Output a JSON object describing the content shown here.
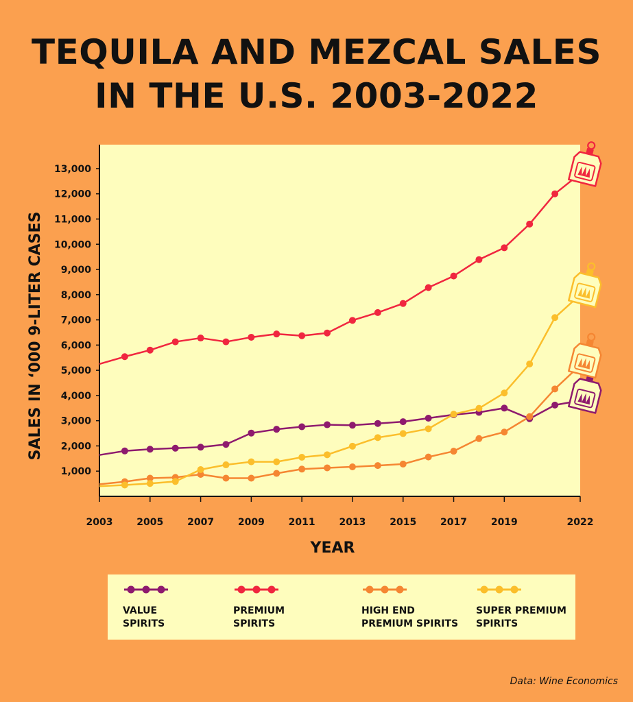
{
  "title_line1": "TEQUILA AND MEZCAL SALES",
  "title_line2": "IN THE U.S. 2003-2022",
  "source": "Data: Wine Economics",
  "colors": {
    "background": "#fba04f",
    "plot_area": "#fefdbd",
    "value": "#8e1a6e",
    "premium": "#f0263f",
    "high_end": "#f58632",
    "super_premium": "#fbbe2b"
  },
  "chart_data": {
    "type": "line",
    "xlabel": "YEAR",
    "ylabel": "SALES IN ‘000 9-LITER CASES",
    "x": [
      2003,
      2004,
      2005,
      2006,
      2007,
      2008,
      2009,
      2010,
      2011,
      2012,
      2013,
      2014,
      2015,
      2016,
      2017,
      2018,
      2019,
      2020,
      2021,
      2022
    ],
    "xticks": [
      "2003",
      "2005",
      "2007",
      "2009",
      "2011",
      "2013",
      "2015",
      "2017",
      "2019",
      "2022"
    ],
    "xtick_values": [
      2003,
      2005,
      2007,
      2009,
      2011,
      2013,
      2015,
      2017,
      2019,
      2022
    ],
    "yticks": [
      "1,000",
      "2,000",
      "3,000",
      "4,000",
      "5,000",
      "6,000",
      "7,000",
      "8,000",
      "9,000",
      "10,000",
      "11,000",
      "12,000",
      "13,000"
    ],
    "ytick_values": [
      1000,
      2000,
      3000,
      4000,
      5000,
      6000,
      7000,
      8000,
      9000,
      10000,
      11000,
      12000,
      13000
    ],
    "ylim": [
      0,
      13950
    ],
    "grid": false,
    "legend_position": "bottom",
    "series": [
      {
        "key": "value",
        "legend": "VALUE\nSPIRITS",
        "color": "#8e1a6e",
        "values": [
          1640,
          1800,
          1870,
          1910,
          1950,
          2060,
          2510,
          2660,
          2760,
          2840,
          2820,
          2890,
          2960,
          3100,
          3240,
          3330,
          3500,
          3080,
          3620,
          3800
        ]
      },
      {
        "key": "premium",
        "legend": "PREMIUM\nSPIRITS",
        "color": "#f0263f",
        "values": [
          5250,
          5540,
          5800,
          6130,
          6280,
          6130,
          6310,
          6440,
          6370,
          6480,
          6980,
          7290,
          7650,
          8280,
          8740,
          9390,
          9860,
          10800,
          12000,
          12800
        ]
      },
      {
        "key": "high_end",
        "legend": "HIGH END\nPREMIUM SPIRITS",
        "color": "#f58632",
        "values": [
          480,
          580,
          720,
          750,
          870,
          720,
          720,
          910,
          1080,
          1130,
          1170,
          1220,
          1280,
          1560,
          1790,
          2290,
          2550,
          3160,
          4260,
          5200
        ]
      },
      {
        "key": "super_premium",
        "legend": "SUPER PREMIUM\nSPIRITS",
        "color": "#fbbe2b",
        "values": [
          400,
          450,
          510,
          590,
          1060,
          1250,
          1370,
          1370,
          1550,
          1650,
          1990,
          2330,
          2490,
          2680,
          3260,
          3490,
          4100,
          5250,
          7090,
          8000
        ]
      }
    ]
  }
}
